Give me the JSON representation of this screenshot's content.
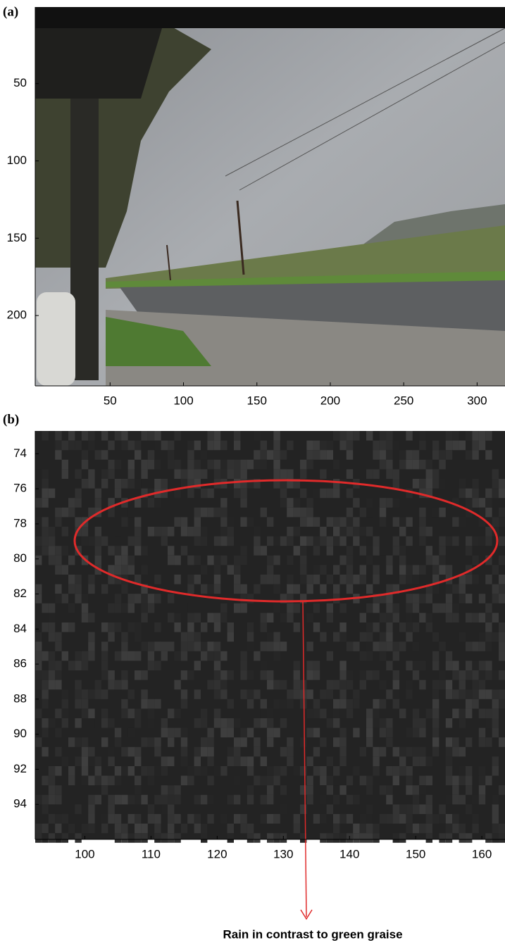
{
  "chart_data": [
    {
      "type": "image",
      "panel_label": "(a)",
      "xlim": [
        -1,
        319
      ],
      "ylim": [
        245.5,
        0.5
      ],
      "xticks": [
        50,
        100,
        150,
        200,
        250,
        300
      ],
      "yticks": [
        50,
        100,
        150,
        200
      ]
    },
    {
      "type": "image",
      "panel_label": "(b)",
      "xlim": [
        92.5,
        163.5
      ],
      "ylim": [
        96,
        72.7
      ],
      "xticks": [
        100,
        110,
        120,
        130,
        140,
        150,
        160
      ],
      "yticks": [
        74,
        76,
        78,
        80,
        82,
        84,
        86,
        88,
        90,
        92,
        94
      ],
      "annotation": "Rain in contrast to green graise"
    }
  ]
}
